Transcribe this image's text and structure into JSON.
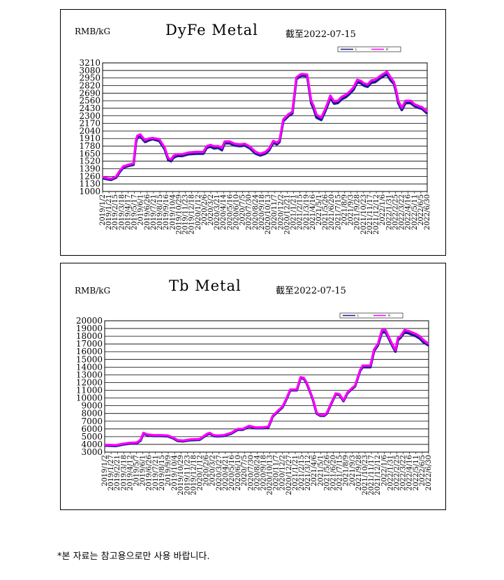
{
  "footnote": "*본 자료는 참고용으로만 사용 바랍니다.",
  "charts": [
    {
      "unit": "RMB/kG",
      "title": "DyFe Metal",
      "asof": "截至2022-07-15",
      "colors": {
        "low": "#1a1a8c",
        "high": "#ff00ff",
        "grid": "#000000"
      },
      "legend": [
        "L",
        "H"
      ]
    },
    {
      "unit": "RMB/kG",
      "title": "Tb Metal",
      "asof": "截至2022-07-15",
      "colors": {
        "low": "#1a1a8c",
        "high": "#ff00ff",
        "grid": "#000000"
      },
      "legend": [
        "L",
        "H"
      ]
    }
  ],
  "chart_data": [
    {
      "type": "line",
      "title": "DyFe Metal",
      "ylabel": "RMB/kG",
      "ylim": [
        1000,
        3210
      ],
      "yticks": [
        1000,
        1130,
        1260,
        1390,
        1520,
        1650,
        1780,
        1910,
        2040,
        2170,
        2300,
        2430,
        2560,
        2690,
        2820,
        2950,
        3080,
        3210
      ],
      "grid": true,
      "legend_position": "top-right",
      "xrange": [
        "2019-01-02",
        "2022-07-15"
      ],
      "xticks": [
        "2019/1/2",
        "2019/1/21",
        "2019/2/15",
        "2019/3/18",
        "2019/4/17",
        "2019/5/17",
        "2019/6/1",
        "2019/6/26",
        "2019/7/21",
        "2019/8/15",
        "2019/9/16",
        "2019/10/4",
        "2019/10/29",
        "2019/11/23",
        "2019/12/18",
        "2020/1/12",
        "2020/2/6",
        "2020/3/2",
        "2020/3/21",
        "2020/4/14",
        "2020/5/16",
        "2020/6/10",
        "2020/7/5",
        "2020/7/30",
        "2020/8/24",
        "2020/9/18",
        "2020/10/13",
        "2020/11/7",
        "2020/12/2",
        "2020/12/21",
        "2021/1/21",
        "2021/2/15",
        "2021/3/19",
        "2021/4/16",
        "2021/5/1",
        "2021/5/26",
        "2021/6/20",
        "2021/7/15",
        "2021/8/9",
        "2021/9/3",
        "2021/9/28",
        "2021/10/23",
        "2021/11/17",
        "2021/12/12",
        "2022/1/6",
        "2022/1/31",
        "2022/2/25",
        "2022/3/22",
        "2022/4/16",
        "2022/5/11",
        "2022/6/5",
        "2022/6/30"
      ],
      "series": [
        {
          "name": "L",
          "x": [
            "2019-01-02",
            "2019-01-20",
            "2019-02-05",
            "2019-02-25",
            "2019-03-10",
            "2019-03-25",
            "2019-04-15",
            "2019-05-05",
            "2019-05-15",
            "2019-05-20",
            "2019-06-01",
            "2019-06-10",
            "2019-06-20",
            "2019-07-05",
            "2019-07-20",
            "2019-08-15",
            "2019-09-05",
            "2019-09-20",
            "2019-10-01",
            "2019-10-10",
            "2019-10-25",
            "2019-11-15",
            "2019-12-10",
            "2020-01-10",
            "2020-02-06",
            "2020-02-20",
            "2020-03-05",
            "2020-03-20",
            "2020-04-05",
            "2020-04-20",
            "2020-05-01",
            "2020-05-20",
            "2020-06-10",
            "2020-07-01",
            "2020-07-20",
            "2020-08-10",
            "2020-09-01",
            "2020-09-20",
            "2020-10-10",
            "2020-10-25",
            "2020-11-10",
            "2020-11-25",
            "2020-12-05",
            "2020-12-20",
            "2021-01-10",
            "2021-01-25",
            "2021-02-10",
            "2021-02-25",
            "2021-03-05",
            "2021-03-25",
            "2021-04-10",
            "2021-04-20",
            "2021-05-01",
            "2021-05-20",
            "2021-06-05",
            "2021-06-15",
            "2021-06-25",
            "2021-07-10",
            "2021-07-25",
            "2021-08-10",
            "2021-08-25",
            "2021-09-10",
            "2021-09-25",
            "2021-10-10",
            "2021-10-25",
            "2021-11-05",
            "2021-11-20",
            "2021-12-05",
            "2021-12-20",
            "2022-01-10",
            "2022-01-25",
            "2022-02-05",
            "2022-02-20",
            "2022-03-05",
            "2022-03-15",
            "2022-03-22",
            "2022-04-05",
            "2022-04-20",
            "2022-05-10",
            "2022-05-25",
            "2022-06-10",
            "2022-06-25",
            "2022-07-15"
          ],
          "values": [
            1230,
            1210,
            1200,
            1240,
            1330,
            1410,
            1440,
            1460,
            1850,
            1930,
            1950,
            1900,
            1850,
            1880,
            1900,
            1870,
            1730,
            1540,
            1520,
            1580,
            1610,
            1610,
            1640,
            1650,
            1650,
            1750,
            1770,
            1740,
            1750,
            1710,
            1830,
            1830,
            1790,
            1780,
            1790,
            1740,
            1650,
            1620,
            1650,
            1710,
            1840,
            1810,
            1850,
            2210,
            2300,
            2340,
            2930,
            2980,
            2990,
            2980,
            2520,
            2420,
            2270,
            2230,
            2380,
            2490,
            2610,
            2510,
            2520,
            2590,
            2620,
            2680,
            2750,
            2880,
            2860,
            2820,
            2800,
            2870,
            2880,
            2950,
            2990,
            3010,
            2910,
            2850,
            2680,
            2520,
            2400,
            2520,
            2520,
            2470,
            2440,
            2420,
            2340
          ]
        },
        {
          "name": "H",
          "x": [
            "2019-01-02",
            "2019-01-20",
            "2019-02-05",
            "2019-02-25",
            "2019-03-10",
            "2019-03-25",
            "2019-04-15",
            "2019-05-05",
            "2019-05-15",
            "2019-05-20",
            "2019-06-01",
            "2019-06-10",
            "2019-06-20",
            "2019-07-05",
            "2019-07-20",
            "2019-08-15",
            "2019-09-05",
            "2019-09-20",
            "2019-10-01",
            "2019-10-10",
            "2019-10-25",
            "2019-11-15",
            "2019-12-10",
            "2020-01-10",
            "2020-02-06",
            "2020-02-20",
            "2020-03-05",
            "2020-03-20",
            "2020-04-05",
            "2020-04-20",
            "2020-05-01",
            "2020-05-20",
            "2020-06-10",
            "2020-07-01",
            "2020-07-20",
            "2020-08-10",
            "2020-09-01",
            "2020-09-20",
            "2020-10-10",
            "2020-10-25",
            "2020-11-10",
            "2020-11-25",
            "2020-12-05",
            "2020-12-20",
            "2021-01-10",
            "2021-01-25",
            "2021-02-10",
            "2021-02-25",
            "2021-03-05",
            "2021-03-25",
            "2021-04-10",
            "2021-04-20",
            "2021-05-01",
            "2021-05-20",
            "2021-06-05",
            "2021-06-15",
            "2021-06-25",
            "2021-07-10",
            "2021-07-25",
            "2021-08-10",
            "2021-08-25",
            "2021-09-10",
            "2021-09-25",
            "2021-10-10",
            "2021-10-25",
            "2021-11-05",
            "2021-11-20",
            "2021-12-05",
            "2021-12-20",
            "2022-01-10",
            "2022-01-25",
            "2022-02-05",
            "2022-02-20",
            "2022-03-05",
            "2022-03-15",
            "2022-03-22",
            "2022-04-05",
            "2022-04-20",
            "2022-05-10",
            "2022-05-25",
            "2022-06-10",
            "2022-06-25",
            "2022-07-15"
          ],
          "values": [
            1250,
            1230,
            1220,
            1260,
            1350,
            1430,
            1460,
            1480,
            1880,
            1960,
            1980,
            1930,
            1880,
            1910,
            1920,
            1900,
            1760,
            1570,
            1550,
            1610,
            1640,
            1640,
            1670,
            1680,
            1680,
            1780,
            1800,
            1780,
            1780,
            1750,
            1860,
            1860,
            1820,
            1810,
            1820,
            1770,
            1680,
            1650,
            1680,
            1740,
            1870,
            1840,
            1880,
            2240,
            2330,
            2370,
            2960,
            3010,
            3020,
            3010,
            2560,
            2470,
            2320,
            2270,
            2420,
            2530,
            2650,
            2550,
            2560,
            2630,
            2660,
            2720,
            2790,
            2920,
            2900,
            2860,
            2840,
            2910,
            2920,
            2990,
            3030,
            3060,
            2960,
            2880,
            2720,
            2560,
            2440,
            2560,
            2560,
            2500,
            2470,
            2450,
            2370
          ]
        }
      ]
    },
    {
      "type": "line",
      "title": "Tb Metal",
      "ylabel": "RMB/kG",
      "ylim": [
        3000,
        20000
      ],
      "yticks": [
        3000,
        4000,
        5000,
        6000,
        7000,
        8000,
        9000,
        10000,
        11000,
        12000,
        13000,
        14000,
        15000,
        16000,
        17000,
        18000,
        19000,
        20000
      ],
      "grid": true,
      "legend_position": "top-right",
      "xrange": [
        "2019-01-02",
        "2022-07-15"
      ],
      "xticks": [
        "2019/1/2",
        "2019/1/27",
        "2019/2/21",
        "2019/3/18",
        "2019/4/12",
        "2019/5/7",
        "2019/6/1",
        "2019/6/26",
        "2019/7/21",
        "2019/8/15",
        "2019/9/9",
        "2019/10/4",
        "2019/10/29",
        "2019/11/23",
        "2019/12/18",
        "2020/1/12",
        "2020/2/6",
        "2020/3/2",
        "2020/3/27",
        "2020/4/21",
        "2020/5/16",
        "2020/6/10",
        "2020/7/5",
        "2020/7/30",
        "2020/8/24",
        "2020/9/18",
        "2020/10/13",
        "2020/11/7",
        "2020/12/2",
        "2020/12/27",
        "2021/1/21",
        "2021/2/15",
        "2021/3/12",
        "2021/4/6",
        "2021/5/1",
        "2021/5/26",
        "2021/6/20",
        "2021/7/15",
        "2021/8/9",
        "2021/9/3",
        "2021/9/28",
        "2021/10/23",
        "2021/11/17",
        "2021/12/12",
        "2022/1/6",
        "2022/1/31",
        "2022/2/25",
        "2022/3/22",
        "2022/4/16",
        "2022/5/11",
        "2022/6/5",
        "2022/6/30"
      ],
      "series": [
        {
          "name": "L",
          "x": [
            "2019-01-02",
            "2019-02-15",
            "2019-03-20",
            "2019-04-10",
            "2019-05-10",
            "2019-05-25",
            "2019-06-05",
            "2019-06-20",
            "2019-07-15",
            "2019-08-15",
            "2019-09-10",
            "2019-10-01",
            "2019-10-20",
            "2019-11-10",
            "2019-12-10",
            "2020-01-15",
            "2020-02-15",
            "2020-02-25",
            "2020-03-10",
            "2020-03-25",
            "2020-04-20",
            "2020-05-20",
            "2020-06-15",
            "2020-07-05",
            "2020-07-30",
            "2020-08-25",
            "2020-09-20",
            "2020-10-15",
            "2020-11-01",
            "2020-11-20",
            "2020-12-10",
            "2020-12-25",
            "2021-01-10",
            "2021-01-20",
            "2021-02-05",
            "2021-02-20",
            "2021-03-05",
            "2021-03-15",
            "2021-03-25",
            "2021-04-10",
            "2021-04-25",
            "2021-05-10",
            "2021-05-25",
            "2021-06-05",
            "2021-06-20",
            "2021-07-10",
            "2021-07-25",
            "2021-08-10",
            "2021-08-25",
            "2021-09-10",
            "2021-09-25",
            "2021-10-15",
            "2021-10-25",
            "2021-11-10",
            "2021-11-25",
            "2021-12-10",
            "2021-12-25",
            "2022-01-10",
            "2022-01-25",
            "2022-02-05",
            "2022-02-20",
            "2022-03-05",
            "2022-03-15",
            "2022-03-25",
            "2022-04-10",
            "2022-04-25",
            "2022-05-10",
            "2022-05-25",
            "2022-06-10",
            "2022-06-25",
            "2022-07-15"
          ],
          "values": [
            3850,
            3800,
            4000,
            4100,
            4150,
            4500,
            5400,
            5200,
            5100,
            5100,
            5050,
            4800,
            4450,
            4400,
            4550,
            4600,
            5300,
            5400,
            5100,
            5050,
            5100,
            5400,
            5900,
            5900,
            6300,
            6100,
            6100,
            6200,
            7600,
            8200,
            8800,
            9800,
            11000,
            11000,
            11000,
            12600,
            12500,
            12000,
            11200,
            9800,
            8000,
            7700,
            7700,
            8000,
            9100,
            10500,
            10400,
            9600,
            10600,
            11100,
            11500,
            13500,
            14000,
            14000,
            14000,
            16100,
            16800,
            18500,
            18500,
            17800,
            16800,
            16000,
            17500,
            17800,
            18500,
            18400,
            18200,
            18000,
            17700,
            17200,
            16800
          ]
        },
        {
          "name": "H",
          "x": [
            "2019-01-02",
            "2019-02-15",
            "2019-03-20",
            "2019-04-10",
            "2019-05-10",
            "2019-05-25",
            "2019-06-05",
            "2019-06-20",
            "2019-07-15",
            "2019-08-15",
            "2019-09-10",
            "2019-10-01",
            "2019-10-20",
            "2019-11-10",
            "2019-12-10",
            "2020-01-15",
            "2020-02-15",
            "2020-02-25",
            "2020-03-10",
            "2020-03-25",
            "2020-04-20",
            "2020-05-20",
            "2020-06-15",
            "2020-07-05",
            "2020-07-30",
            "2020-08-25",
            "2020-09-20",
            "2020-10-15",
            "2020-11-01",
            "2020-11-20",
            "2020-12-10",
            "2020-12-25",
            "2021-01-10",
            "2021-01-20",
            "2021-02-05",
            "2021-02-20",
            "2021-03-05",
            "2021-03-15",
            "2021-03-25",
            "2021-04-10",
            "2021-04-25",
            "2021-05-10",
            "2021-05-25",
            "2021-06-05",
            "2021-06-20",
            "2021-07-10",
            "2021-07-25",
            "2021-08-10",
            "2021-08-25",
            "2021-09-10",
            "2021-09-25",
            "2021-10-15",
            "2021-10-25",
            "2021-11-10",
            "2021-11-25",
            "2021-12-10",
            "2021-12-25",
            "2022-01-10",
            "2022-01-25",
            "2022-02-05",
            "2022-02-20",
            "2022-03-05",
            "2022-03-15",
            "2022-03-25",
            "2022-04-10",
            "2022-04-25",
            "2022-05-10",
            "2022-05-25",
            "2022-06-10",
            "2022-06-25",
            "2022-07-15"
          ],
          "values": [
            3950,
            3900,
            4100,
            4200,
            4250,
            4600,
            5500,
            5300,
            5200,
            5200,
            5150,
            4900,
            4550,
            4500,
            4650,
            4700,
            5400,
            5500,
            5200,
            5150,
            5200,
            5500,
            6000,
            6000,
            6400,
            6200,
            6200,
            6300,
            7700,
            8300,
            8900,
            9900,
            11100,
            11100,
            11100,
            12700,
            12600,
            12100,
            11300,
            9900,
            8100,
            7800,
            7800,
            8100,
            9200,
            10600,
            10500,
            9700,
            10700,
            11200,
            11600,
            13600,
            14200,
            14200,
            14200,
            16300,
            17000,
            18800,
            18800,
            18000,
            17000,
            16200,
            17800,
            18000,
            18800,
            18700,
            18500,
            18300,
            18000,
            17500,
            17000
          ]
        }
      ]
    }
  ]
}
